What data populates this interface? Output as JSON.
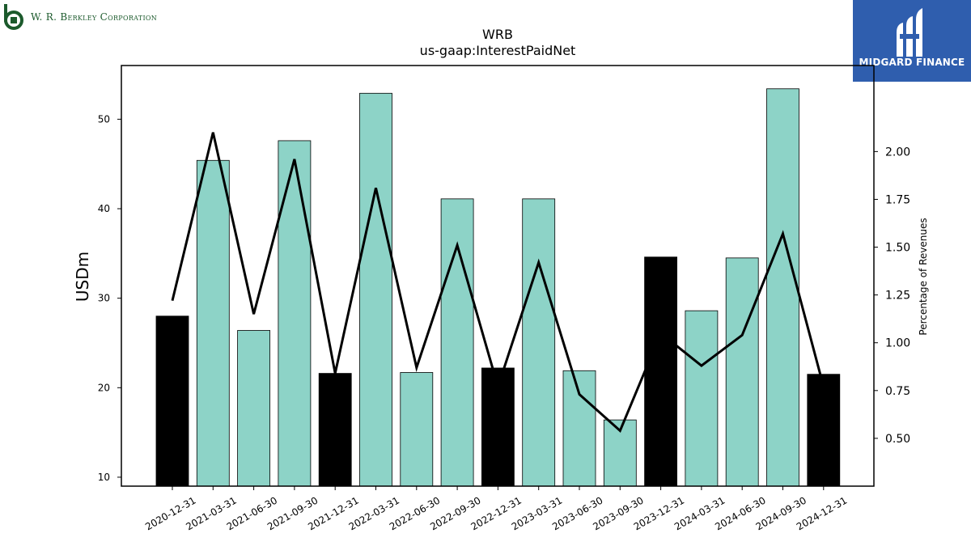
{
  "company": {
    "name": "W. R. Berkley Corporation"
  },
  "brand": {
    "name": "MIDGARD FINANCE",
    "color": "#2f5eae"
  },
  "colors": {
    "bar_default": "#8dd3c7",
    "bar_highlight": "#000000",
    "line": "#000000"
  },
  "chart_data": {
    "type": "bar",
    "title": "WRB",
    "subtitle": "us-gaap:InterestPaidNet",
    "ylabel": "USDm",
    "y2label": "Percentage of Revenues",
    "ylim": [
      9,
      56
    ],
    "y2lim": [
      0.25,
      2.45
    ],
    "yticks": [
      10,
      20,
      30,
      40,
      50
    ],
    "y2ticks": [
      0.5,
      0.75,
      1.0,
      1.25,
      1.5,
      1.75,
      2.0
    ],
    "y2tick_labels": [
      "0.50",
      "0.75",
      "1.00",
      "1.25",
      "1.50",
      "1.75",
      "2.00"
    ],
    "categories": [
      "2020-12-31",
      "2021-03-31",
      "2021-06-30",
      "2021-09-30",
      "2021-12-31",
      "2022-03-31",
      "2022-06-30",
      "2022-09-30",
      "2022-12-31",
      "2023-03-31",
      "2023-06-30",
      "2023-09-30",
      "2023-12-31",
      "2024-03-31",
      "2024-06-30",
      "2024-09-30",
      "2024-12-31"
    ],
    "values": [
      28.0,
      45.4,
      26.4,
      47.6,
      21.6,
      52.9,
      21.7,
      41.1,
      22.2,
      41.1,
      21.9,
      16.4,
      34.6,
      28.6,
      34.5,
      53.4,
      21.5
    ],
    "highlight": [
      true,
      false,
      false,
      false,
      true,
      false,
      false,
      false,
      true,
      false,
      false,
      false,
      true,
      false,
      false,
      false,
      true
    ],
    "line_values": [
      1.22,
      2.1,
      1.15,
      1.96,
      0.84,
      1.81,
      0.87,
      1.51,
      0.77,
      1.42,
      0.73,
      0.54,
      1.05,
      0.88,
      1.04,
      1.57,
      0.77
    ],
    "grid": false
  }
}
